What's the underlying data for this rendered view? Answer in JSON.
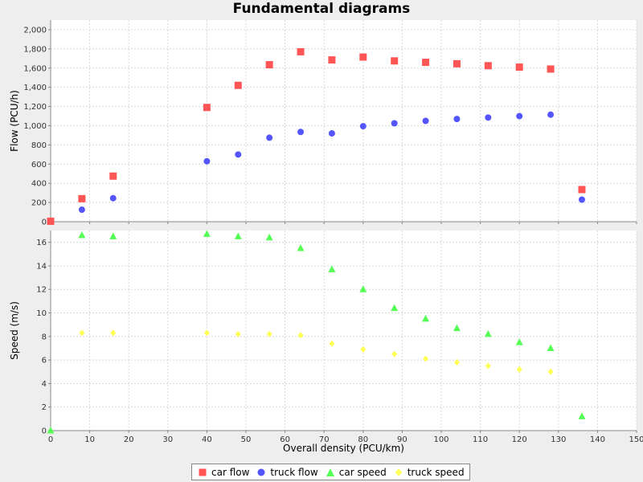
{
  "chart_title": "Fundamental diagrams",
  "chart_data": [
    {
      "type": "scatter",
      "title": "Fundamental diagrams",
      "xlabel": "",
      "ylabel": "Flow (PCU/h)",
      "xlim": [
        0,
        150
      ],
      "ylim": [
        0,
        2100
      ],
      "x_ticks": [
        0,
        10,
        20,
        30,
        40,
        50,
        60,
        70,
        80,
        90,
        100,
        110,
        120,
        130,
        140,
        150
      ],
      "y_ticks": [
        0,
        200,
        400,
        600,
        800,
        1000,
        1200,
        1400,
        1600,
        1800,
        2000
      ],
      "y_tick_labels": [
        "0",
        "200",
        "400",
        "600",
        "800",
        "1,000",
        "1,200",
        "1,400",
        "1,600",
        "1,800",
        "2,000"
      ],
      "grid": true,
      "series": [
        {
          "name": "car flow",
          "marker": "square",
          "color": "#ff5555",
          "x": [
            0,
            8,
            16,
            40,
            48,
            56,
            64,
            72,
            80,
            88,
            96,
            104,
            112,
            120,
            128,
            136
          ],
          "y": [
            5,
            240,
            475,
            1190,
            1420,
            1635,
            1770,
            1685,
            1715,
            1675,
            1660,
            1645,
            1625,
            1610,
            1590,
            335
          ]
        },
        {
          "name": "truck flow",
          "marker": "circle",
          "color": "#5555ff",
          "x": [
            8,
            16,
            40,
            48,
            56,
            64,
            72,
            80,
            88,
            96,
            104,
            112,
            120,
            128,
            136
          ],
          "y": [
            125,
            245,
            630,
            700,
            875,
            935,
            920,
            995,
            1025,
            1050,
            1070,
            1085,
            1100,
            1115,
            230
          ]
        }
      ]
    },
    {
      "type": "scatter",
      "xlabel": "Overall density (PCU/km)",
      "ylabel": "Speed (m/s)",
      "xlim": [
        0,
        150
      ],
      "ylim": [
        0,
        17
      ],
      "x_ticks": [
        0,
        10,
        20,
        30,
        40,
        50,
        60,
        70,
        80,
        90,
        100,
        110,
        120,
        130,
        140,
        150
      ],
      "y_ticks": [
        0,
        2,
        4,
        6,
        8,
        10,
        12,
        14,
        16
      ],
      "grid": true,
      "series": [
        {
          "name": "car speed",
          "marker": "triangle",
          "color": "#55ff55",
          "x": [
            0,
            8,
            16,
            40,
            48,
            56,
            64,
            72,
            80,
            88,
            96,
            104,
            112,
            120,
            128,
            136
          ],
          "y": [
            0,
            16.6,
            16.5,
            16.7,
            16.5,
            16.4,
            15.5,
            13.7,
            12.0,
            10.4,
            9.5,
            8.7,
            8.2,
            7.5,
            7.0,
            1.2
          ]
        },
        {
          "name": "truck speed",
          "marker": "diamond",
          "color": "#ffff55",
          "x": [
            8,
            16,
            40,
            48,
            56,
            64,
            72,
            80,
            88,
            96,
            104,
            112,
            120,
            128
          ],
          "y": [
            8.3,
            8.3,
            8.3,
            8.2,
            8.2,
            8.1,
            7.4,
            6.9,
            6.5,
            6.1,
            5.8,
            5.5,
            5.2,
            5.0
          ]
        }
      ]
    }
  ],
  "legend": [
    {
      "label": "car flow",
      "marker": "square",
      "color": "#ff5555"
    },
    {
      "label": "truck flow",
      "marker": "circle",
      "color": "#5555ff"
    },
    {
      "label": "car speed",
      "marker": "triangle",
      "color": "#55ff55"
    },
    {
      "label": "truck speed",
      "marker": "diamond",
      "color": "#ffff55"
    }
  ]
}
